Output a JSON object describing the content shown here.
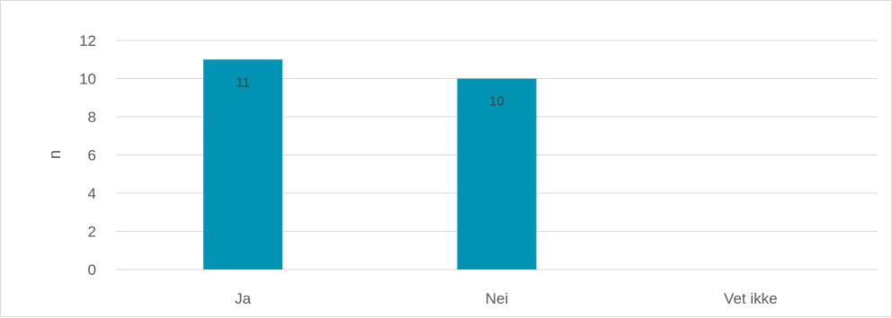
{
  "chart_data": {
    "type": "bar",
    "categories": [
      "Ja",
      "Nei",
      "Vet ikke"
    ],
    "values": [
      11,
      10,
      0
    ],
    "data_labels": [
      "11",
      "10",
      ""
    ],
    "xlabel": "",
    "ylabel": "n",
    "ylim": [
      0,
      12
    ],
    "yticks": [
      0,
      2,
      4,
      6,
      8,
      10,
      12
    ],
    "grid": true,
    "legend": "none",
    "colors": {
      "bar": "#0093b2",
      "grid": "#d9d9d9",
      "text": "#595959"
    }
  }
}
